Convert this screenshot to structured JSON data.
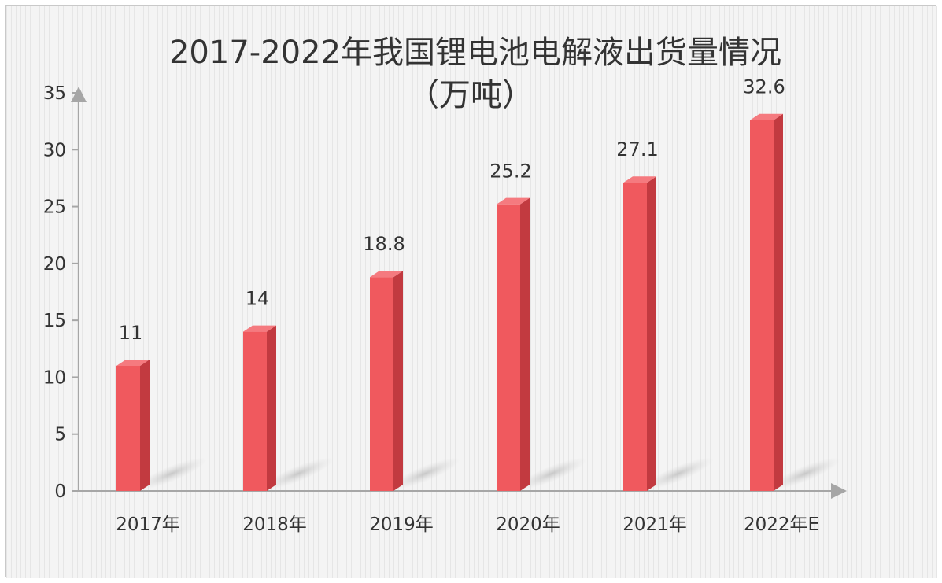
{
  "chart_data": {
    "type": "bar",
    "title": "2017-2022年我国锂电池电解液出货量情况",
    "subtitle": "（万吨）",
    "categories": [
      "2017年",
      "2018年",
      "2019年",
      "2020年",
      "2021年",
      "2022年E"
    ],
    "values": [
      11,
      14,
      18.8,
      25.2,
      27.1,
      32.6
    ],
    "value_labels": [
      "11",
      "14",
      "18.8",
      "25.2",
      "27.1",
      "32.6"
    ],
    "ylim": [
      0,
      35
    ],
    "yticks": [
      0,
      5,
      10,
      15,
      20,
      25,
      30,
      35
    ],
    "xlabel": "",
    "ylabel": "",
    "grid": false,
    "legend": "none",
    "colors": {
      "bar_front": "#f0595e",
      "bar_side": "#c23a40",
      "bar_top": "#f57a7f",
      "axis": "#a6a6a6",
      "background_stripe": "#e6e6e6"
    }
  }
}
